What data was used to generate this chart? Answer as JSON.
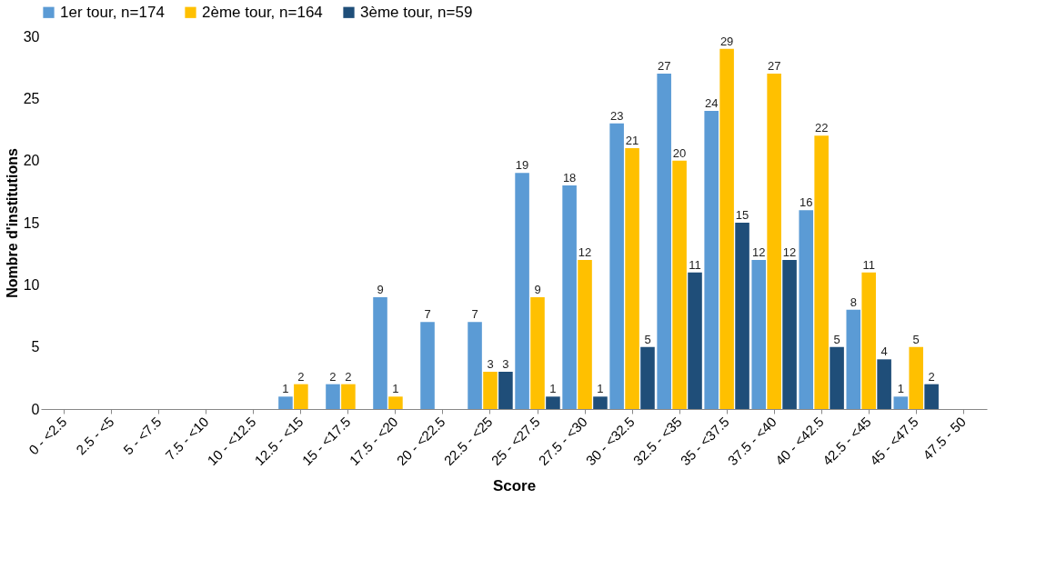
{
  "chart_data": {
    "type": "bar",
    "xlabel": "Score",
    "ylabel": "Nombre d'institutions",
    "categories": [
      "0 - <2.5",
      "2.5 - <5",
      "5 - <7.5",
      "7.5 - <10",
      "10 - <12.5",
      "12.5 - <15",
      "15 - <17.5",
      "17.5 - <20",
      "20 - <22.5",
      "22.5 - <25",
      "25 - <27.5",
      "27.5 - <30",
      "30 - <32.5",
      "32.5 - <35",
      "35 - <37.5",
      "37.5 - <40",
      "40 - <42.5",
      "42.5 - <45",
      "45 - <47.5",
      "47.5 - 50"
    ],
    "series": [
      {
        "name": "1er tour, n=174",
        "color": "#5b9bd5",
        "values": [
          null,
          null,
          null,
          null,
          null,
          1,
          2,
          9,
          7,
          7,
          19,
          18,
          23,
          27,
          24,
          12,
          16,
          8,
          1,
          null
        ]
      },
      {
        "name": "2ème tour, n=164",
        "color": "#ffc000",
        "values": [
          null,
          null,
          null,
          null,
          null,
          2,
          2,
          1,
          null,
          3,
          9,
          12,
          21,
          20,
          29,
          27,
          22,
          11,
          5,
          null
        ]
      },
      {
        "name": "3ème tour, n=59",
        "color": "#1f4e79",
        "values": [
          null,
          null,
          null,
          null,
          null,
          null,
          null,
          null,
          null,
          3,
          1,
          1,
          5,
          11,
          15,
          12,
          5,
          4,
          2,
          null
        ]
      }
    ],
    "ylim": [
      0,
      30
    ],
    "yticks": [
      0,
      5,
      10,
      15,
      20,
      25,
      30
    ],
    "grid": false,
    "legend": "top",
    "data_labels": true
  }
}
